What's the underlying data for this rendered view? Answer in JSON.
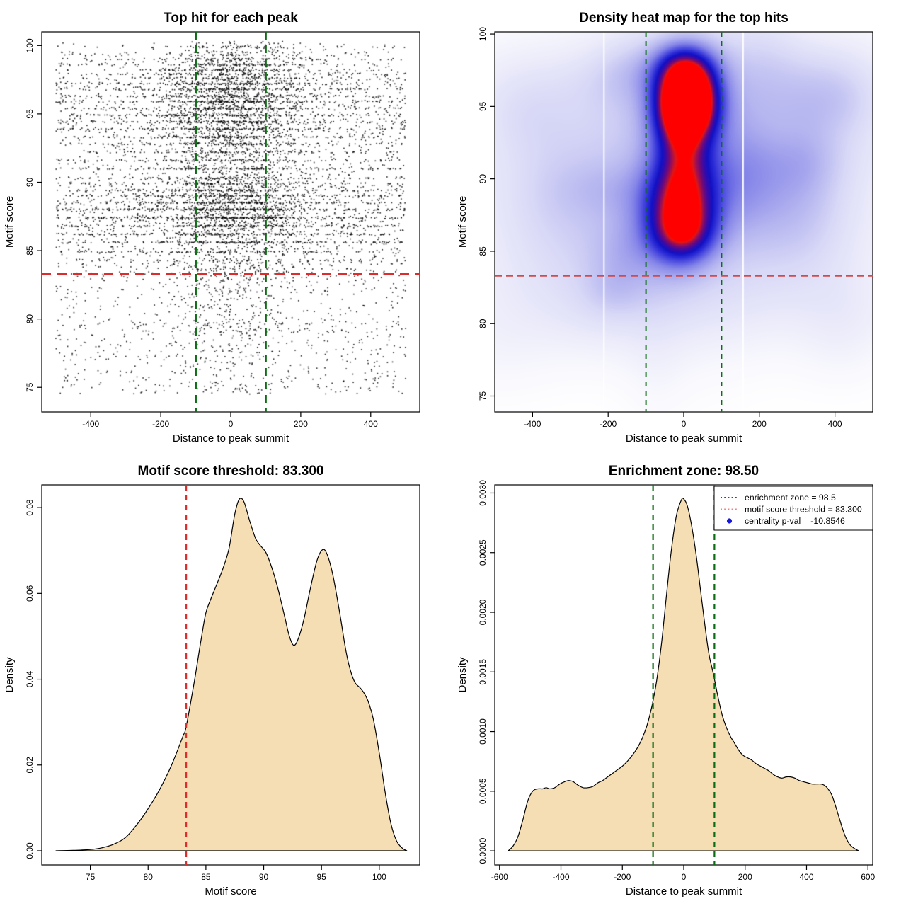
{
  "colors": {
    "green_line": "#0c6e14",
    "red_line": "#dd2c2c",
    "red_muted": "#d24a4a",
    "legend_red": "#f08080",
    "legend_blue": "#1616e0",
    "density_fill": "#f5deb3",
    "point_color": "#000000",
    "frame": "#000000",
    "text": "#000000",
    "hot_core": "#ff0000",
    "white_streak": "#ffffff"
  },
  "thresholds": {
    "motif_score_threshold": 83.3,
    "enrichment_zone_half_width": 100,
    "enrichment_zone_value": 98.5,
    "centrality_p_val": -10.8546
  },
  "chart_data": [
    {
      "id": "top-hit-scatter",
      "type": "scatter",
      "title": "Top hit for each peak",
      "xlabel": "Distance to peak summit",
      "ylabel": "Motif score",
      "xlim": [
        -540,
        540
      ],
      "ylim": [
        73.2,
        101.0
      ],
      "xticks": {
        "values": [
          -400,
          -200,
          0,
          200,
          400
        ],
        "labels": [
          "-400",
          "-200",
          "0",
          "200",
          "400"
        ]
      },
      "yticks": {
        "values": [
          75,
          80,
          85,
          90,
          95,
          100
        ],
        "labels": [
          "75",
          "80",
          "85",
          "90",
          "95",
          "100"
        ]
      },
      "vlines": [
        {
          "x": -100,
          "color_ref": "green_line",
          "width": 2.8,
          "dash": [
            11,
            8
          ],
          "name": "enrichment-zone-line-left"
        },
        {
          "x": 100,
          "color_ref": "green_line",
          "width": 2.8,
          "dash": [
            11,
            8
          ],
          "name": "enrichment-zone-line-right"
        }
      ],
      "hlines": [
        {
          "y": 83.3,
          "color_ref": "red_line",
          "width": 2.8,
          "dash": [
            13,
            9
          ],
          "name": "motif-threshold-line"
        }
      ],
      "scatter": {
        "n": 9000,
        "seed": 42,
        "x_range": [
          -500,
          500
        ],
        "y_range": [
          73.8,
          100.3
        ],
        "y_mixture": [
          {
            "w": 0.38,
            "mean": 87.8,
            "sd": 2.3
          },
          {
            "w": 0.24,
            "mean": 94.8,
            "sd": 1.7
          },
          {
            "w": 0.11,
            "mean": 97.9,
            "sd": 1.2
          },
          {
            "w": 0.21,
            "uniform": [
              79.0,
              100.2
            ]
          },
          {
            "w": 0.06,
            "uniform": [
              74.5,
              80.0
            ]
          }
        ],
        "bands": [
          84.3,
          84.9,
          85.6,
          86.2,
          86.8,
          87.4,
          88.0,
          88.5,
          89.0,
          89.4,
          89.9,
          90.3,
          91.0,
          91.6,
          92.2,
          92.8,
          93.3,
          93.9,
          94.4,
          94.9,
          95.4,
          95.9,
          96.3,
          96.8,
          97.2,
          97.6,
          97.9,
          98.2,
          98.6,
          99.0,
          99.3,
          99.5,
          99.9
        ],
        "band_fraction": 0.5,
        "band_snap_dist": 0.45,
        "central_prob_base": 0.2,
        "central_prob_slope": 0.4,
        "central_sd": 105,
        "point_size": 1.6,
        "alpha": 0.88
      }
    },
    {
      "id": "density-heatmap",
      "type": "heatmap",
      "title": "Density heat map for the top hits",
      "xlabel": "Distance to peak summit",
      "ylabel": "Motif score",
      "xlim": [
        -500,
        500
      ],
      "ylim": [
        73.9,
        100.15
      ],
      "xticks": {
        "values": [
          -400,
          -200,
          0,
          200,
          400
        ],
        "labels": [
          "-400",
          "-200",
          "0",
          "200",
          "400"
        ]
      },
      "yticks": {
        "values": [
          75,
          80,
          85,
          90,
          95,
          100
        ],
        "labels": [
          "75",
          "80",
          "85",
          "90",
          "95",
          "100"
        ]
      },
      "vlines": [
        {
          "x": -100,
          "color_ref": "green_line",
          "width": 2,
          "dash": [
            7,
            6
          ],
          "name": "enrichment-zone-line-left"
        },
        {
          "x": 100,
          "color_ref": "green_line",
          "width": 2,
          "dash": [
            7,
            6
          ],
          "name": "enrichment-zone-line-right"
        }
      ],
      "hlines": [
        {
          "y": 83.3,
          "color_ref": "red_muted",
          "width": 2.2,
          "dash": [
            10,
            6
          ],
          "name": "motif-threshold-line"
        }
      ],
      "heatmap": {
        "colormap": [
          [
            0.0,
            "#ffffff"
          ],
          [
            0.1,
            "#eeeefb"
          ],
          [
            0.22,
            "#d9d9f7"
          ],
          [
            0.35,
            "#b5b5f0"
          ],
          [
            0.48,
            "#8787e9"
          ],
          [
            0.58,
            "#5656e1"
          ],
          [
            0.67,
            "#2c2cd7"
          ],
          [
            0.75,
            "#1111c4"
          ],
          [
            0.82,
            "#3a0aa6"
          ],
          [
            0.88,
            "#6e0a78"
          ],
          [
            0.93,
            "#a31050"
          ],
          [
            0.97,
            "#e11515"
          ],
          [
            1.0,
            "#ff0000"
          ]
        ],
        "blobs": [
          [
            8,
            95.25,
            56,
            1.65,
            1.0
          ],
          [
            2,
            97.7,
            62,
            1.4,
            0.52
          ],
          [
            -8,
            93.5,
            55,
            1.6,
            0.22
          ],
          [
            -4,
            88.1,
            64,
            2.3,
            0.62
          ],
          [
            0,
            91.5,
            52,
            1.7,
            0.22
          ],
          [
            -2,
            86.0,
            60,
            1.4,
            0.3
          ],
          [
            0,
            91.5,
            140,
            7.5,
            0.16
          ],
          [
            0,
            88.8,
            470,
            5.2,
            0.15
          ],
          [
            0,
            96.3,
            480,
            3.0,
            0.1
          ],
          [
            -320,
            88.2,
            125,
            4.3,
            0.13
          ],
          [
            285,
            88.6,
            115,
            3.8,
            0.12
          ],
          [
            0,
            81.5,
            470,
            2.6,
            0.07
          ],
          [
            -420,
            94.8,
            85,
            2.4,
            0.07
          ],
          [
            355,
            95.3,
            80,
            2.4,
            0.07
          ],
          [
            -150,
            97.4,
            60,
            1.6,
            0.1
          ],
          [
            155,
            90.2,
            70,
            2.8,
            0.1
          ]
        ],
        "mottle": {
          "n": 24,
          "seed": 7,
          "amp": [
            0.02,
            0.06
          ],
          "sx": [
            50,
            110
          ],
          "sy": [
            1.2,
            3.2
          ],
          "cx": [
            -500,
            500
          ],
          "cy": [
            77,
            99.5
          ]
        },
        "white_streaks": [
          -211,
          157
        ]
      }
    },
    {
      "id": "motif-score-density",
      "type": "density",
      "title": "Motif score threshold: 83.300",
      "xlabel": "Motif score",
      "ylabel": "Density",
      "xlim": [
        70.8,
        103.5
      ],
      "ylim": [
        -0.0033,
        0.0853
      ],
      "xticks": {
        "values": [
          75,
          80,
          85,
          90,
          95,
          100
        ],
        "labels": [
          "75",
          "80",
          "85",
          "90",
          "95",
          "100"
        ]
      },
      "yticks": {
        "values": [
          0.0,
          0.02,
          0.04,
          0.06,
          0.08
        ],
        "labels": [
          "0.00",
          "0.02",
          "0.04",
          "0.06",
          "0.08"
        ]
      },
      "vlines": [
        {
          "x": 83.3,
          "color_ref": "red_line",
          "width": 2.2,
          "dash": [
            8,
            6
          ],
          "name": "motif-threshold-line"
        }
      ],
      "hlines": [],
      "curve": {
        "fill_ref": "density_fill",
        "points": [
          [
            72,
            0
          ],
          [
            73.5,
            0.0001
          ],
          [
            75,
            0.0003
          ],
          [
            76,
            0.0007
          ],
          [
            77,
            0.0015
          ],
          [
            78,
            0.003
          ],
          [
            79,
            0.006
          ],
          [
            80,
            0.0098
          ],
          [
            81,
            0.0143
          ],
          [
            82,
            0.0198
          ],
          [
            83,
            0.0266
          ],
          [
            83.3,
            0.029
          ],
          [
            84,
            0.0395
          ],
          [
            84.6,
            0.0495
          ],
          [
            85,
            0.0555
          ],
          [
            85.4,
            0.0585
          ],
          [
            86,
            0.0625
          ],
          [
            86.5,
            0.066
          ],
          [
            87,
            0.0705
          ],
          [
            87.5,
            0.0785
          ],
          [
            87.9,
            0.082
          ],
          [
            88.3,
            0.0813
          ],
          [
            88.8,
            0.0768
          ],
          [
            89.3,
            0.0728
          ],
          [
            89.7,
            0.0712
          ],
          [
            90.2,
            0.0695
          ],
          [
            90.7,
            0.066
          ],
          [
            91.2,
            0.0615
          ],
          [
            91.8,
            0.0548
          ],
          [
            92.2,
            0.0502
          ],
          [
            92.6,
            0.0479
          ],
          [
            93,
            0.0495
          ],
          [
            93.5,
            0.0542
          ],
          [
            94,
            0.0607
          ],
          [
            94.6,
            0.0676
          ],
          [
            95.1,
            0.0702
          ],
          [
            95.5,
            0.069
          ],
          [
            96,
            0.0641
          ],
          [
            96.6,
            0.0551
          ],
          [
            97.1,
            0.0468
          ],
          [
            97.5,
            0.0421
          ],
          [
            97.9,
            0.0392
          ],
          [
            98.3,
            0.0381
          ],
          [
            98.7,
            0.0367
          ],
          [
            99.1,
            0.0344
          ],
          [
            99.5,
            0.0305
          ],
          [
            100,
            0.0228
          ],
          [
            100.5,
            0.0138
          ],
          [
            101,
            0.0064
          ],
          [
            101.5,
            0.0023
          ],
          [
            102,
            0.0006
          ],
          [
            102.4,
            0
          ]
        ]
      }
    },
    {
      "id": "summit-distance-density",
      "type": "density",
      "title": "Enrichment zone: 98.50",
      "xlabel": "Distance to peak summit",
      "ylabel": "Density",
      "xlim": [
        -615.6,
        615.6
      ],
      "ylim": [
        -0.000118,
        0.003068
      ],
      "xticks": {
        "values": [
          -600,
          -400,
          -200,
          0,
          200,
          400,
          600
        ],
        "labels": [
          "-600",
          "-400",
          "-200",
          "0",
          "200",
          "400",
          "600"
        ]
      },
      "yticks": {
        "values": [
          0.0,
          0.0005,
          0.001,
          0.0015,
          0.002,
          0.0025,
          0.003
        ],
        "labels": [
          "0.0000",
          "0.0005",
          "0.0010",
          "0.0015",
          "0.0020",
          "0.0025",
          "0.0030"
        ]
      },
      "vlines": [
        {
          "x": -100,
          "color_ref": "green_line",
          "width": 2.2,
          "dash": [
            8,
            6
          ],
          "name": "enrichment-zone-line-left"
        },
        {
          "x": 100,
          "color_ref": "green_line",
          "width": 2.2,
          "dash": [
            8,
            6
          ],
          "name": "enrichment-zone-line-right"
        }
      ],
      "hlines": [],
      "curve": {
        "fill_ref": "density_fill",
        "points": [
          [
            -572,
            0
          ],
          [
            -556,
            4e-05
          ],
          [
            -540,
            0.00012
          ],
          [
            -524,
            0.00026
          ],
          [
            -508,
            0.00042
          ],
          [
            -492,
            0.0005
          ],
          [
            -476,
            0.00052
          ],
          [
            -460,
            0.00052
          ],
          [
            -448,
            0.00053
          ],
          [
            -436,
            0.00052
          ],
          [
            -420,
            0.00053
          ],
          [
            -404,
            0.00056
          ],
          [
            -388,
            0.00058
          ],
          [
            -374,
            0.00059
          ],
          [
            -360,
            0.00058
          ],
          [
            -344,
            0.00055
          ],
          [
            -328,
            0.00053
          ],
          [
            -312,
            0.00053
          ],
          [
            -296,
            0.00054
          ],
          [
            -280,
            0.00057
          ],
          [
            -264,
            0.00059
          ],
          [
            -248,
            0.00062
          ],
          [
            -232,
            0.00065
          ],
          [
            -216,
            0.00068
          ],
          [
            -200,
            0.00071
          ],
          [
            -184,
            0.00075
          ],
          [
            -168,
            0.0008
          ],
          [
            -152,
            0.00086
          ],
          [
            -136,
            0.00094
          ],
          [
            -120,
            0.00105
          ],
          [
            -104,
            0.00121
          ],
          [
            -88,
            0.00143
          ],
          [
            -72,
            0.00175
          ],
          [
            -56,
            0.00215
          ],
          [
            -40,
            0.00253
          ],
          [
            -24,
            0.00281
          ],
          [
            -8,
            0.00294
          ],
          [
            0,
            0.00295
          ],
          [
            12,
            0.00289
          ],
          [
            26,
            0.00272
          ],
          [
            40,
            0.00249
          ],
          [
            54,
            0.0022
          ],
          [
            68,
            0.00191
          ],
          [
            82,
            0.00165
          ],
          [
            96,
            0.00149
          ],
          [
            110,
            0.00131
          ],
          [
            124,
            0.00115
          ],
          [
            138,
            0.00104
          ],
          [
            152,
            0.00096
          ],
          [
            166,
            0.0009
          ],
          [
            180,
            0.00084
          ],
          [
            194,
            0.0008
          ],
          [
            208,
            0.00078
          ],
          [
            222,
            0.00076
          ],
          [
            236,
            0.00073
          ],
          [
            250,
            0.00071
          ],
          [
            264,
            0.00069
          ],
          [
            278,
            0.00067
          ],
          [
            292,
            0.00064
          ],
          [
            306,
            0.00062
          ],
          [
            320,
            0.00061
          ],
          [
            334,
            0.00062
          ],
          [
            348,
            0.00062
          ],
          [
            362,
            0.00061
          ],
          [
            376,
            0.00059
          ],
          [
            390,
            0.00058
          ],
          [
            404,
            0.00057
          ],
          [
            418,
            0.00056
          ],
          [
            432,
            0.00056
          ],
          [
            446,
            0.00056
          ],
          [
            458,
            0.00055
          ],
          [
            470,
            0.00052
          ],
          [
            482,
            0.00047
          ],
          [
            494,
            0.00038
          ],
          [
            506,
            0.00028
          ],
          [
            518,
            0.00018
          ],
          [
            530,
            0.0001
          ],
          [
            542,
            5e-05
          ],
          [
            556,
            2e-05
          ],
          [
            570,
            0
          ]
        ]
      },
      "legend": {
        "items": [
          {
            "symbol": "dotted-line",
            "color_ref": "green_line",
            "label": "enrichment zone = 98.5"
          },
          {
            "symbol": "dotted-line",
            "color_ref": "legend_red",
            "label": "motif score threshold = 83.300"
          },
          {
            "symbol": "dot",
            "color_ref": "legend_blue",
            "label": "centrality p-val = -10.8546"
          }
        ]
      }
    }
  ]
}
